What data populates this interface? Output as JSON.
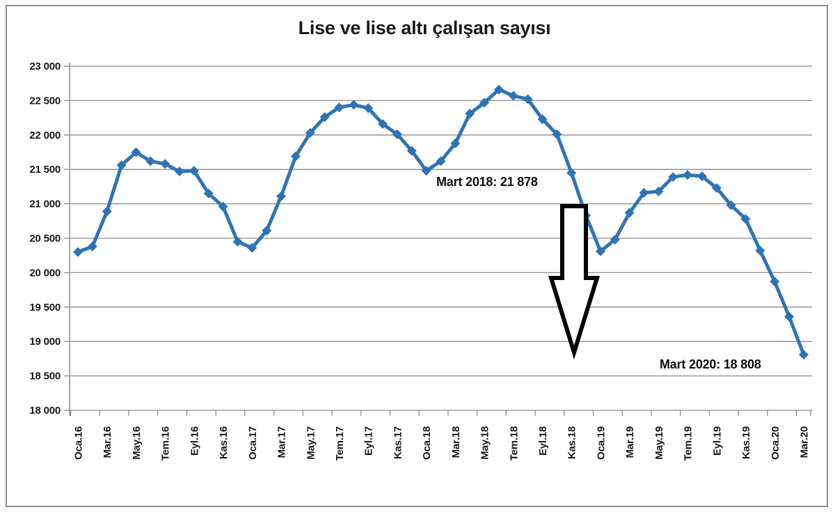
{
  "chart_data": {
    "type": "line",
    "title": "Lise ve lise altı çalışan sayısı",
    "xlabel": "",
    "ylabel": "",
    "ylim": [
      18000,
      23000
    ],
    "y_tick_step": 500,
    "grid": true,
    "legend": "none",
    "series_color": "#2E74B5",
    "marker": "diamond",
    "y_tick_labels": [
      "23 000",
      "22 500",
      "22 000",
      "21 500",
      "21 000",
      "20 500",
      "20 000",
      "19 500",
      "19 000",
      "18 500",
      "18 000"
    ],
    "x_tick_labels": [
      "Oca.16",
      "Mar.16",
      "May.16",
      "Tem.16",
      "Eyl.16",
      "Kas.16",
      "Oca.17",
      "Mar.17",
      "May.17",
      "Tem.17",
      "Eyl.17",
      "Kas.17",
      "Oca.18",
      "Mar.18",
      "May.18",
      "Tem.18",
      "Eyl.18",
      "Kas.18",
      "Oca.19",
      "Mar.19",
      "May.19",
      "Tem.19",
      "Eyl.19",
      "Kas.19",
      "Oca.20",
      "Mar.20"
    ],
    "label_every": 2,
    "values": [
      20300,
      20380,
      20890,
      21560,
      21750,
      21620,
      21580,
      21470,
      21480,
      21150,
      20960,
      20450,
      20360,
      20610,
      21110,
      21690,
      22030,
      22260,
      22400,
      22440,
      22390,
      22160,
      22010,
      21770,
      21480,
      21620,
      21878,
      22310,
      22470,
      22660,
      22570,
      22520,
      22230,
      22010,
      21450,
      20830,
      20310,
      20480,
      20870,
      21160,
      21180,
      21390,
      21420,
      21400,
      21230,
      20980,
      20780,
      20320,
      19870,
      19360,
      18808
    ],
    "highlighted_points": [
      {
        "label": "Mart 2018",
        "value": 21878
      },
      {
        "label": "Mart 2020",
        "value": 18808
      }
    ],
    "annotations": [
      {
        "text": "Mart 2018: 21 878"
      },
      {
        "text": "Mart 2020: 18 808"
      }
    ],
    "arrow": {
      "direction": "down",
      "outline_color": "#000000",
      "fill_color": "#ffffff"
    }
  }
}
